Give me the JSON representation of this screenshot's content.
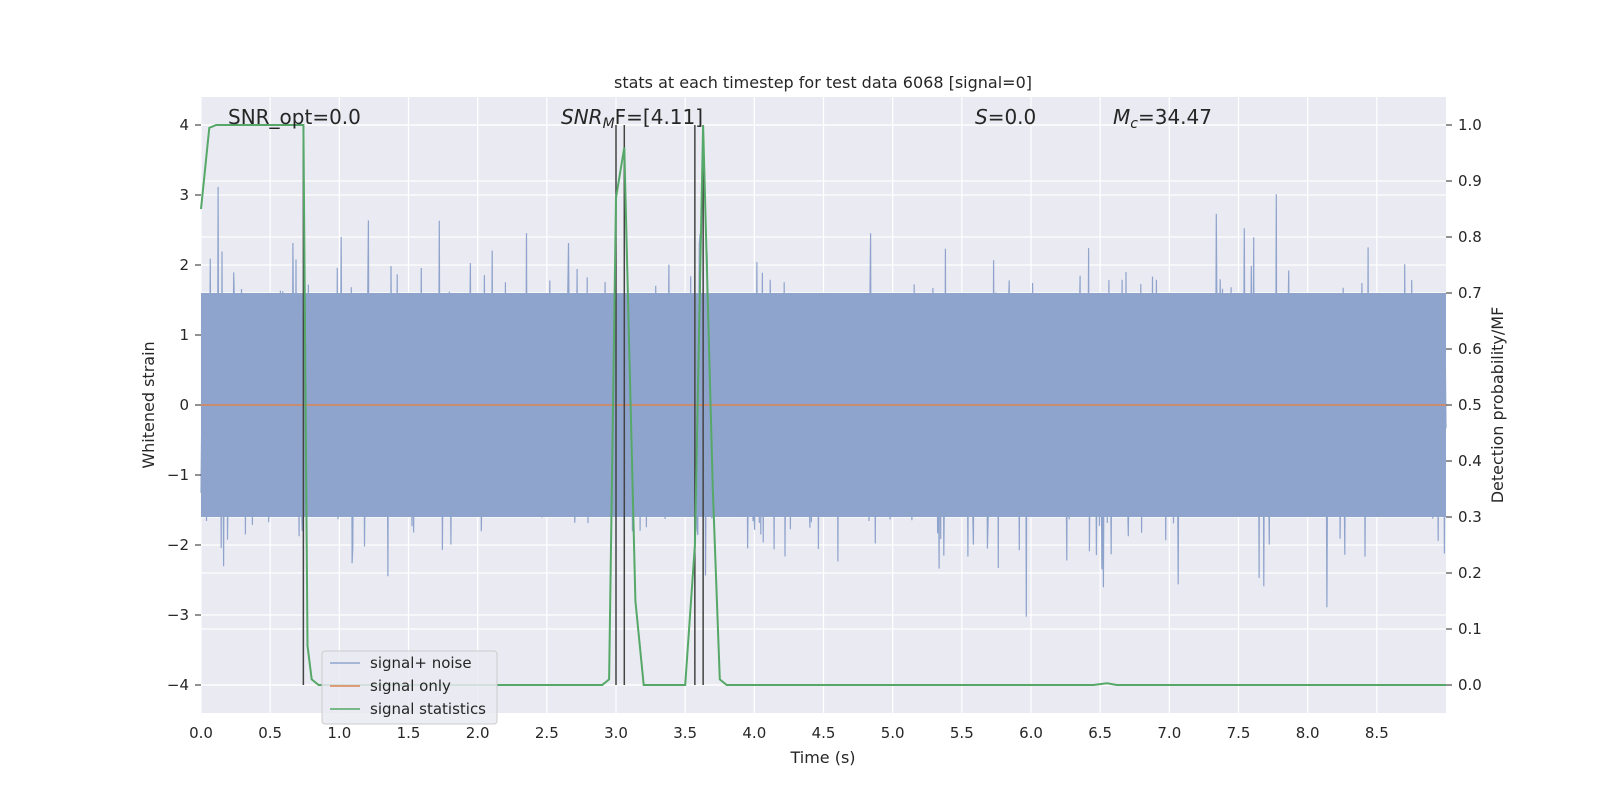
{
  "chart_data": {
    "type": "line",
    "title": "stats at each timestep for test data 6068 [signal=0]",
    "xlabel": "Time (s)",
    "ylabel": "Whitened strain",
    "y2label": "Detection probability/MF",
    "xlim": [
      0,
      9
    ],
    "ylim": [
      -4.4,
      4.4
    ],
    "y2lim": [
      -0.05,
      1.05
    ],
    "xticks": [
      "0.0",
      "0.5",
      "1.0",
      "1.5",
      "2.0",
      "2.5",
      "3.0",
      "3.5",
      "4.0",
      "4.5",
      "5.0",
      "5.5",
      "6.0",
      "6.5",
      "7.0",
      "7.5",
      "8.0",
      "8.5"
    ],
    "yticks": [
      "4",
      "3",
      "2",
      "1",
      "0",
      "−1",
      "−2",
      "−3",
      "−4"
    ],
    "y2ticks": [
      "1.0",
      "0.9",
      "0.8",
      "0.7",
      "0.6",
      "0.5",
      "0.4",
      "0.3",
      "0.2",
      "0.1",
      "0.0"
    ],
    "grid": true,
    "legend_position": "lower-left",
    "annotations": {
      "snr_opt": "SNR_opt=0.0",
      "snr_mf_sym": "SNR",
      "snr_mf_sub": "M",
      "snr_mf_rest": "F=[4.11]",
      "s_sym": "S",
      "s_rest": "=0.0",
      "mc_sym": "M",
      "mc_sub": "c",
      "mc_rest": "=34.47"
    },
    "series": [
      {
        "name": "signal+ noise",
        "color": "#8fa4cc",
        "kind": "noise",
        "amplitude_range": [
          -4.0,
          3.8
        ],
        "typical_envelope": [
          -1.6,
          1.6
        ]
      },
      {
        "name": "signal only",
        "color": "#dd8452",
        "kind": "flat",
        "value": 0.0
      },
      {
        "name": "signal statistics",
        "color": "#55a868",
        "axis": "right",
        "x": [
          0.0,
          0.06,
          0.11,
          0.2,
          0.4,
          0.6,
          0.7,
          0.74,
          0.77,
          0.8,
          0.85,
          1.0,
          2.0,
          2.9,
          2.95,
          3.0,
          3.06,
          3.14,
          3.2,
          3.3,
          3.5,
          3.57,
          3.63,
          3.7,
          3.75,
          3.8,
          4.0,
          5.0,
          6.0,
          6.45,
          6.55,
          6.62,
          7.0,
          8.0,
          9.0
        ],
        "values": [
          0.85,
          0.995,
          1.0,
          1.0,
          1.0,
          1.0,
          1.0,
          1.0,
          0.07,
          0.01,
          0.0,
          0.0,
          0.0,
          0.0,
          0.01,
          0.87,
          0.96,
          0.15,
          0.0,
          0.0,
          0.0,
          0.25,
          1.0,
          0.35,
          0.01,
          0.0,
          0.0,
          0.0,
          0.0,
          0.0,
          0.003,
          0.0,
          0.0,
          0.0,
          0.0
        ]
      }
    ],
    "vlines": [
      {
        "x": 0.74,
        "y2_from": 0.0,
        "y2_to": 1.0,
        "color": "#444444"
      },
      {
        "x": 3.0,
        "y2_from": 0.0,
        "y2_to": 1.0,
        "color": "#444444"
      },
      {
        "x": 3.06,
        "y2_from": 0.0,
        "y2_to": 1.0,
        "color": "#444444"
      },
      {
        "x": 3.57,
        "y2_from": 0.0,
        "y2_to": 1.0,
        "color": "#444444"
      },
      {
        "x": 3.63,
        "y2_from": 0.0,
        "y2_to": 1.0,
        "color": "#444444"
      }
    ]
  }
}
